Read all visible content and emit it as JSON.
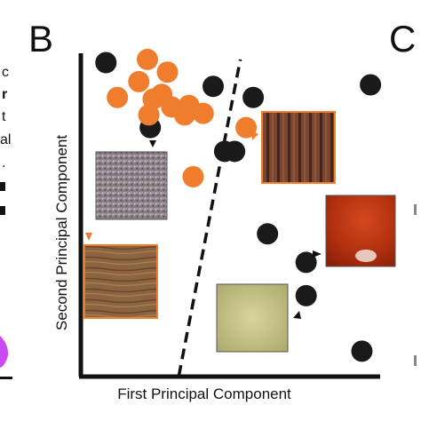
{
  "figure": {
    "panel_left_letter": "B",
    "panel_right_letter": "C",
    "left_edge_fragments": [
      "c",
      "r",
      "t",
      "al",
      "."
    ]
  },
  "chart_data": {
    "type": "scatter",
    "xlabel": "First Principal Component",
    "ylabel": "Second Principal Component",
    "xlim": [
      0,
      10
    ],
    "ylim": [
      0,
      10
    ],
    "grid": false,
    "legend": "none",
    "colors": {
      "group_a": "#1a1a1a",
      "group_b": "#f07d2d",
      "boundary": "#111111"
    },
    "series": [
      {
        "color": "#1a1a1a",
        "points": [
          {
            "x": 0.35,
            "y": 9.65
          },
          {
            "x": 4.1,
            "y": 8.9
          },
          {
            "x": 5.5,
            "y": 8.55
          },
          {
            "x": 9.6,
            "y": 8.95
          },
          {
            "x": 1.9,
            "y": 7.6
          },
          {
            "x": 4.5,
            "y": 6.85
          },
          {
            "x": 4.85,
            "y": 6.85
          },
          {
            "x": 6.0,
            "y": 4.25
          },
          {
            "x": 7.35,
            "y": 3.35
          },
          {
            "x": 7.35,
            "y": 2.3
          },
          {
            "x": 9.3,
            "y": 0.55
          }
        ]
      },
      {
        "color": "#f07d2d",
        "points": [
          {
            "x": 1.8,
            "y": 9.75
          },
          {
            "x": 2.5,
            "y": 9.35
          },
          {
            "x": 1.5,
            "y": 9.05
          },
          {
            "x": 2.3,
            "y": 8.65
          },
          {
            "x": 2.0,
            "y": 8.5
          },
          {
            "x": 0.75,
            "y": 8.55
          },
          {
            "x": 2.65,
            "y": 8.25
          },
          {
            "x": 3.25,
            "y": 8.3
          },
          {
            "x": 1.85,
            "y": 8.0
          },
          {
            "x": 3.1,
            "y": 8.0
          },
          {
            "x": 3.75,
            "y": 8.05
          },
          {
            "x": 5.25,
            "y": 7.6
          },
          {
            "x": 3.4,
            "y": 6.05
          }
        ]
      }
    ],
    "boundary_line": {
      "from": {
        "x": 2.9,
        "y": 0.0
      },
      "to": {
        "x": 5.05,
        "y": 9.75
      }
    }
  }
}
